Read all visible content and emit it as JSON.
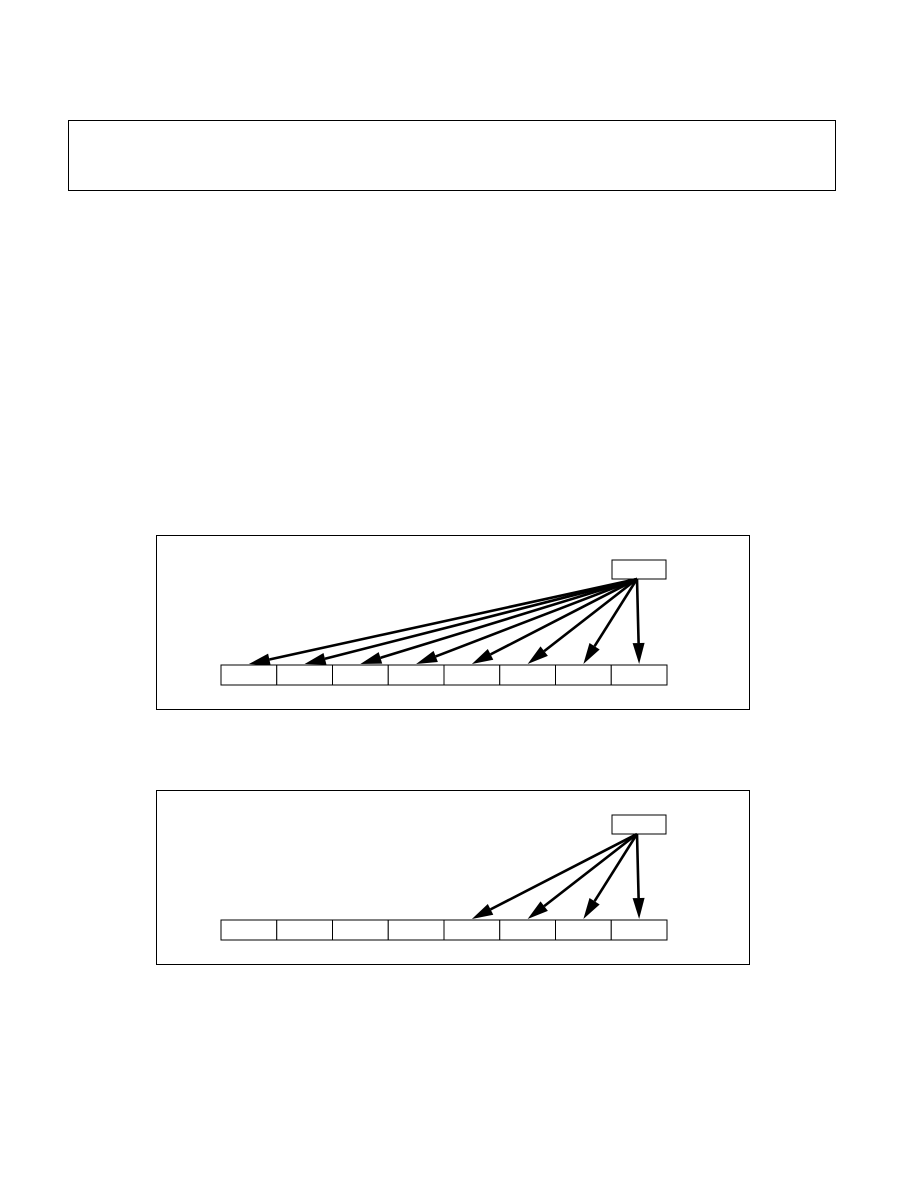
{
  "page": {
    "header_box_text": ""
  },
  "diagrams": [
    {
      "id": "panel-top",
      "source_label": "",
      "cell_count": 8,
      "cell_labels": [
        "",
        "",
        "",
        "",
        "",
        "",
        "",
        ""
      ],
      "arrow_targets": [
        0,
        1,
        2,
        3,
        4,
        5,
        6,
        7
      ]
    },
    {
      "id": "panel-bottom",
      "source_label": "",
      "cell_count": 8,
      "cell_labels": [
        "",
        "",
        "",
        "",
        "",
        "",
        "",
        ""
      ],
      "arrow_targets": [
        4,
        5,
        6,
        7
      ]
    }
  ],
  "colors": {
    "stroke": "#000000",
    "background": "#ffffff"
  }
}
